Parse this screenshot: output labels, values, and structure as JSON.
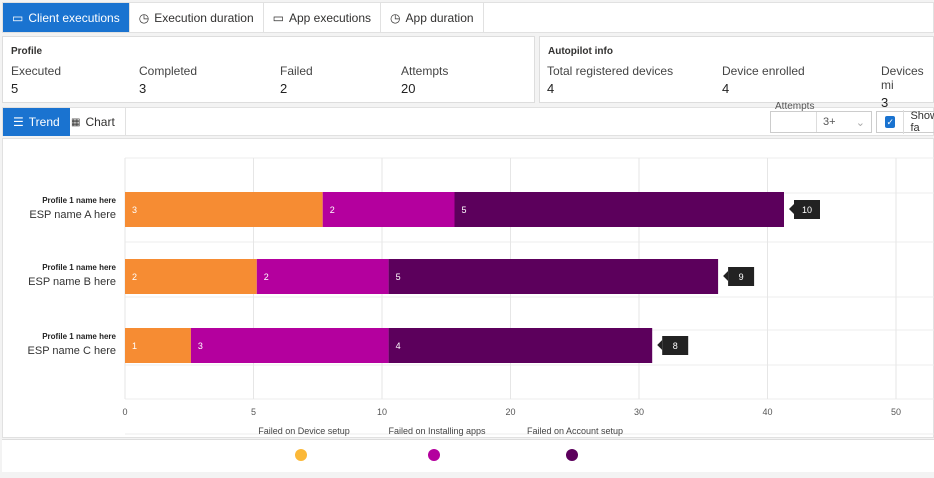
{
  "tabs": [
    {
      "label": "Client executions",
      "icon": "monitor-icon",
      "active": true
    },
    {
      "label": "Execution duration",
      "icon": "clock-icon"
    },
    {
      "label": "App executions",
      "icon": "app-window-icon"
    },
    {
      "label": "App duration",
      "icon": "clock-icon"
    }
  ],
  "profile": {
    "title": "Profile",
    "stats": [
      {
        "label": "Executed",
        "value": "5"
      },
      {
        "label": "Completed",
        "value": "3"
      },
      {
        "label": "Failed",
        "value": "2"
      },
      {
        "label": "Attempts",
        "value": "20"
      }
    ]
  },
  "autopilot": {
    "title": "Autopilot info",
    "stats": [
      {
        "label": "Total registered devices",
        "value": "4"
      },
      {
        "label": "Device enrolled",
        "value": "4"
      },
      {
        "label": "Devices mi",
        "value": "3"
      }
    ]
  },
  "view": {
    "trend": "Trend",
    "chart": "Chart",
    "attempts_label": "Attempts",
    "attempts_value": "3+",
    "show_label": "Show fa",
    "show_checked": true
  },
  "chart_data": {
    "type": "bar",
    "orientation": "horizontal",
    "stacked": true,
    "categories": [
      {
        "profile": "Profile 1 name here",
        "esp": "ESP name A here"
      },
      {
        "profile": "Profile 1 name here",
        "esp": "ESP name B here"
      },
      {
        "profile": "Profile 1 name here",
        "esp": "ESP name C here"
      }
    ],
    "series": [
      {
        "name": "Failed on Device setup",
        "color": "#f68c33",
        "legend_color": "#fbb838",
        "values": [
          3,
          2,
          1
        ]
      },
      {
        "name": "Failed on Installing apps",
        "color": "#b4009e",
        "legend_color": "#b4009e",
        "values": [
          2,
          2,
          3
        ]
      },
      {
        "name": "Failed on Account setup",
        "color": "#5c005c",
        "legend_color": "#5c005c",
        "values": [
          5,
          5,
          4
        ]
      }
    ],
    "totals": [
      10,
      9,
      8
    ],
    "x_ticks": [
      "0",
      "5",
      "10",
      "20",
      "30",
      "40",
      "50"
    ],
    "grid": true,
    "legend": "bottom"
  }
}
